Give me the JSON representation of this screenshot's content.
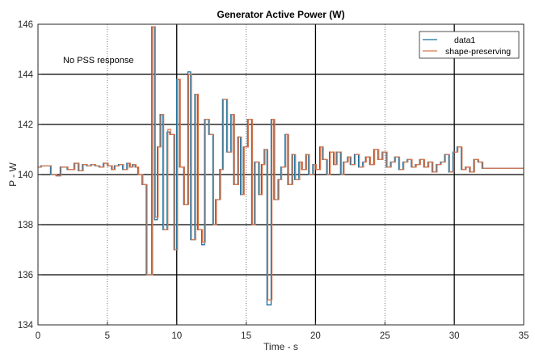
{
  "chart_data": {
    "type": "line",
    "title": "Generator Active Power (W)",
    "xlabel": "Time - s",
    "ylabel": "P - W",
    "xlim": [
      0,
      35
    ],
    "ylim": [
      134,
      146
    ],
    "xticks": [
      0,
      5,
      10,
      15,
      20,
      25,
      30,
      35
    ],
    "yticks": [
      134,
      136,
      138,
      140,
      142,
      144,
      146
    ],
    "grid": true,
    "legend_position": "top-right",
    "annotation": "No PSS response",
    "colors": {
      "data1": "#1f6f9a",
      "shape_preserving": "#d9784f"
    },
    "series": [
      {
        "name": "data1",
        "step": true,
        "x": [
          0,
          0.2,
          0.9,
          1.3,
          1.6,
          2.1,
          2.4,
          2.6,
          2.9,
          3.2,
          3.5,
          3.8,
          4.1,
          4.4,
          4.7,
          5.0,
          5.3,
          5.5,
          5.8,
          6.1,
          6.4,
          6.6,
          6.8,
          7.0,
          7.2,
          7.5,
          7.8,
          8.0,
          8.2,
          8.4,
          8.6,
          8.8,
          9.0,
          9.3,
          9.5,
          9.8,
          10.0,
          10.2,
          10.5,
          10.8,
          11.0,
          11.3,
          11.5,
          11.8,
          12.0,
          12.3,
          12.6,
          12.8,
          13.1,
          13.3,
          13.6,
          13.9,
          14.1,
          14.4,
          14.6,
          14.8,
          15.1,
          15.4,
          15.6,
          15.9,
          16.1,
          16.3,
          16.5,
          16.8,
          17.0,
          17.3,
          17.5,
          17.8,
          18.0,
          18.3,
          18.5,
          18.8,
          19.0,
          19.3,
          19.5,
          19.8,
          20.0,
          20.3,
          20.5,
          20.8,
          21.0,
          21.3,
          21.5,
          21.8,
          22.0,
          22.3,
          22.5,
          22.8,
          23.1,
          23.4,
          23.6,
          23.9,
          24.2,
          24.5,
          24.8,
          25.1,
          25.4,
          25.7,
          26.0,
          26.3,
          26.6,
          26.9,
          27.2,
          27.5,
          27.8,
          28.1,
          28.4,
          28.7,
          29.0,
          29.3,
          29.6,
          29.9,
          30.2,
          30.5,
          30.8,
          31.1,
          31.4,
          31.7,
          32.0,
          32.3,
          35.0
        ],
        "y": [
          140.3,
          140.35,
          140.0,
          139.95,
          140.3,
          140.2,
          140.2,
          140.45,
          140.15,
          140.4,
          140.35,
          140.4,
          140.35,
          140.3,
          140.45,
          140.35,
          140.2,
          140.35,
          140.4,
          140.2,
          140.45,
          140.3,
          140.4,
          140.3,
          140.0,
          139.6,
          136.0,
          136.0,
          145.9,
          138.2,
          141.1,
          142.4,
          137.8,
          141.7,
          141.6,
          137.0,
          143.8,
          140.3,
          138.8,
          144.1,
          137.4,
          143.2,
          137.8,
          137.2,
          142.2,
          141.6,
          138.0,
          139.0,
          140.2,
          143.0,
          140.9,
          142.4,
          139.6,
          141.5,
          139.2,
          141.1,
          142.2,
          138.0,
          140.5,
          139.2,
          140.4,
          141.0,
          134.8,
          142.2,
          139.0,
          139.8,
          140.3,
          141.6,
          139.6,
          140.8,
          139.8,
          140.5,
          140.2,
          140.8,
          140.0,
          140.4,
          140.2,
          141.1,
          140.6,
          140.0,
          140.9,
          140.4,
          140.9,
          140.0,
          140.5,
          140.7,
          140.4,
          140.8,
          140.3,
          140.5,
          140.7,
          140.4,
          141.0,
          140.6,
          140.9,
          140.3,
          140.5,
          140.7,
          140.2,
          140.5,
          140.6,
          140.3,
          140.4,
          140.6,
          140.3,
          140.5,
          140.1,
          140.4,
          140.5,
          140.8,
          140.1,
          140.9,
          141.1,
          140.2,
          140.3,
          140.1,
          140.6,
          140.5,
          140.25,
          140.25,
          140.25
        ]
      },
      {
        "name": "shape-preserving",
        "step": true,
        "x": [
          0,
          0.2,
          0.9,
          1.3,
          1.6,
          2.1,
          2.4,
          2.6,
          2.9,
          3.2,
          3.5,
          3.8,
          4.1,
          4.4,
          4.7,
          5.0,
          5.3,
          5.5,
          5.8,
          6.1,
          6.4,
          6.6,
          6.8,
          7.0,
          7.2,
          7.5,
          7.8,
          8.0,
          8.2,
          8.4,
          8.6,
          8.8,
          9.0,
          9.3,
          9.5,
          9.8,
          10.0,
          10.2,
          10.5,
          10.8,
          11.0,
          11.3,
          11.5,
          11.8,
          12.0,
          12.3,
          12.6,
          12.8,
          13.1,
          13.3,
          13.6,
          13.9,
          14.1,
          14.4,
          14.6,
          14.8,
          15.1,
          15.4,
          15.6,
          15.9,
          16.1,
          16.3,
          16.5,
          16.8,
          17.0,
          17.3,
          17.5,
          17.8,
          18.0,
          18.3,
          18.5,
          18.8,
          19.0,
          19.3,
          19.5,
          19.8,
          20.0,
          20.3,
          20.5,
          20.8,
          21.0,
          21.3,
          21.5,
          21.8,
          22.0,
          22.3,
          22.5,
          22.8,
          23.1,
          23.4,
          23.6,
          23.9,
          24.2,
          24.5,
          24.8,
          25.1,
          25.4,
          25.7,
          26.0,
          26.3,
          26.6,
          26.9,
          27.2,
          27.5,
          27.8,
          28.1,
          28.4,
          28.7,
          29.0,
          29.3,
          29.6,
          29.9,
          30.2,
          30.5,
          30.8,
          31.1,
          31.4,
          31.7,
          32.0,
          32.3,
          35.0
        ],
        "y": [
          140.3,
          140.35,
          140.0,
          139.95,
          140.3,
          140.2,
          140.2,
          140.45,
          140.15,
          140.4,
          140.35,
          140.4,
          140.35,
          140.3,
          140.45,
          140.35,
          140.2,
          140.35,
          140.4,
          140.2,
          140.45,
          140.3,
          140.4,
          140.3,
          140.0,
          139.6,
          136.0,
          136.0,
          145.9,
          138.3,
          141.1,
          142.4,
          137.8,
          141.8,
          141.6,
          137.0,
          143.8,
          140.3,
          138.8,
          144.0,
          137.4,
          143.2,
          137.8,
          137.3,
          142.2,
          141.6,
          138.0,
          139.0,
          140.2,
          143.0,
          140.9,
          142.4,
          139.6,
          141.5,
          139.2,
          141.1,
          142.2,
          138.0,
          140.5,
          139.2,
          140.4,
          141.0,
          135.0,
          142.2,
          139.0,
          139.8,
          140.3,
          141.6,
          139.6,
          140.8,
          139.8,
          140.5,
          140.2,
          140.8,
          140.0,
          140.4,
          140.2,
          141.1,
          140.6,
          140.0,
          140.9,
          140.4,
          140.9,
          140.0,
          140.5,
          140.7,
          140.4,
          140.8,
          140.3,
          140.5,
          140.7,
          140.4,
          141.0,
          140.6,
          140.9,
          140.3,
          140.5,
          140.7,
          140.2,
          140.5,
          140.6,
          140.3,
          140.4,
          140.6,
          140.3,
          140.5,
          140.1,
          140.4,
          140.5,
          140.8,
          140.1,
          140.9,
          141.1,
          140.2,
          140.3,
          140.1,
          140.6,
          140.5,
          140.25,
          140.25,
          140.25
        ]
      }
    ]
  }
}
